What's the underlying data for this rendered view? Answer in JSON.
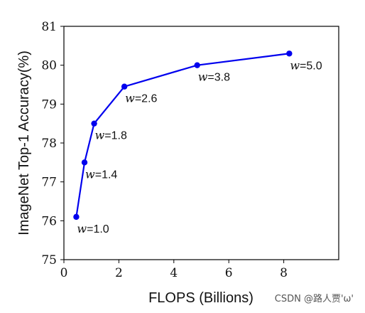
{
  "chart_data": {
    "type": "line",
    "xlabel": "FLOPS (Billions)",
    "ylabel": "ImageNet Top-1 Accuracy(%)",
    "xlim": [
      0,
      10
    ],
    "ylim": [
      75,
      81
    ],
    "xticks": [
      0,
      2,
      4,
      6,
      8
    ],
    "yticks": [
      75,
      76,
      77,
      78,
      79,
      80,
      81
    ],
    "grid": false,
    "color": "#0000ee",
    "series": [
      {
        "x": [
          0.45,
          0.75,
          1.1,
          2.2,
          4.85,
          8.2
        ],
        "y": [
          76.1,
          77.5,
          78.5,
          79.45,
          80.0,
          80.3
        ],
        "labels": [
          "=1.0",
          "=1.4",
          "=1.8",
          "=2.6",
          "=3.8",
          "=5.0"
        ],
        "label_prefix": "w"
      }
    ]
  },
  "watermark": "CSDN @路人贾'ω'"
}
